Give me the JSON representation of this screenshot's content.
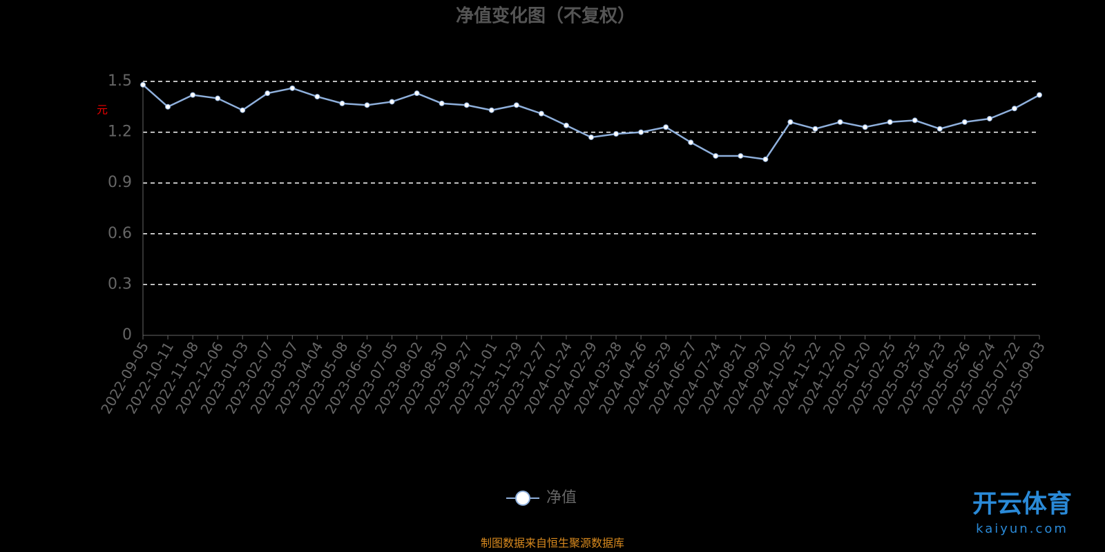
{
  "chart_data": {
    "type": "line",
    "title": "净值变化图（不复权）",
    "y_label": "元",
    "source": "制图数据来自恒生聚源数据库",
    "watermark": {
      "brand": "开云体育",
      "site": "kaiyun.com"
    },
    "categories": [
      "2022-09-05",
      "2022-10-11",
      "2022-11-08",
      "2022-12-06",
      "2023-01-03",
      "2023-02-07",
      "2023-03-07",
      "2023-04-04",
      "2023-05-08",
      "2023-06-05",
      "2023-07-05",
      "2023-08-02",
      "2023-08-30",
      "2023-09-27",
      "2023-11-01",
      "2023-11-29",
      "2023-12-27",
      "2024-01-24",
      "2024-02-29",
      "2024-03-28",
      "2024-04-26",
      "2024-05-29",
      "2024-06-27",
      "2024-07-24",
      "2024-08-21",
      "2024-09-20",
      "2024-10-25",
      "2024-11-22",
      "2024-12-20",
      "2025-01-20",
      "2025-02-25",
      "2025-03-25",
      "2025-04-23",
      "2025-05-26",
      "2025-06-24",
      "2025-07-22",
      "2025-09-03"
    ],
    "series": [
      {
        "name": "净值",
        "color": "#8fb0dc",
        "values": [
          1.48,
          1.35,
          1.42,
          1.4,
          1.33,
          1.43,
          1.46,
          1.41,
          1.37,
          1.36,
          1.38,
          1.43,
          1.37,
          1.36,
          1.33,
          1.36,
          1.31,
          1.24,
          1.17,
          1.19,
          1.2,
          1.23,
          1.14,
          1.06,
          1.06,
          1.04,
          1.26,
          1.22,
          1.26,
          1.23,
          1.26,
          1.27,
          1.22,
          1.26,
          1.28,
          1.34,
          1.42
        ]
      }
    ],
    "ylim": [
      0,
      1.5
    ],
    "yticks": [
      0,
      0.3,
      0.6,
      0.9,
      1.2,
      1.5
    ],
    "grid": true,
    "legend": "bottom"
  }
}
